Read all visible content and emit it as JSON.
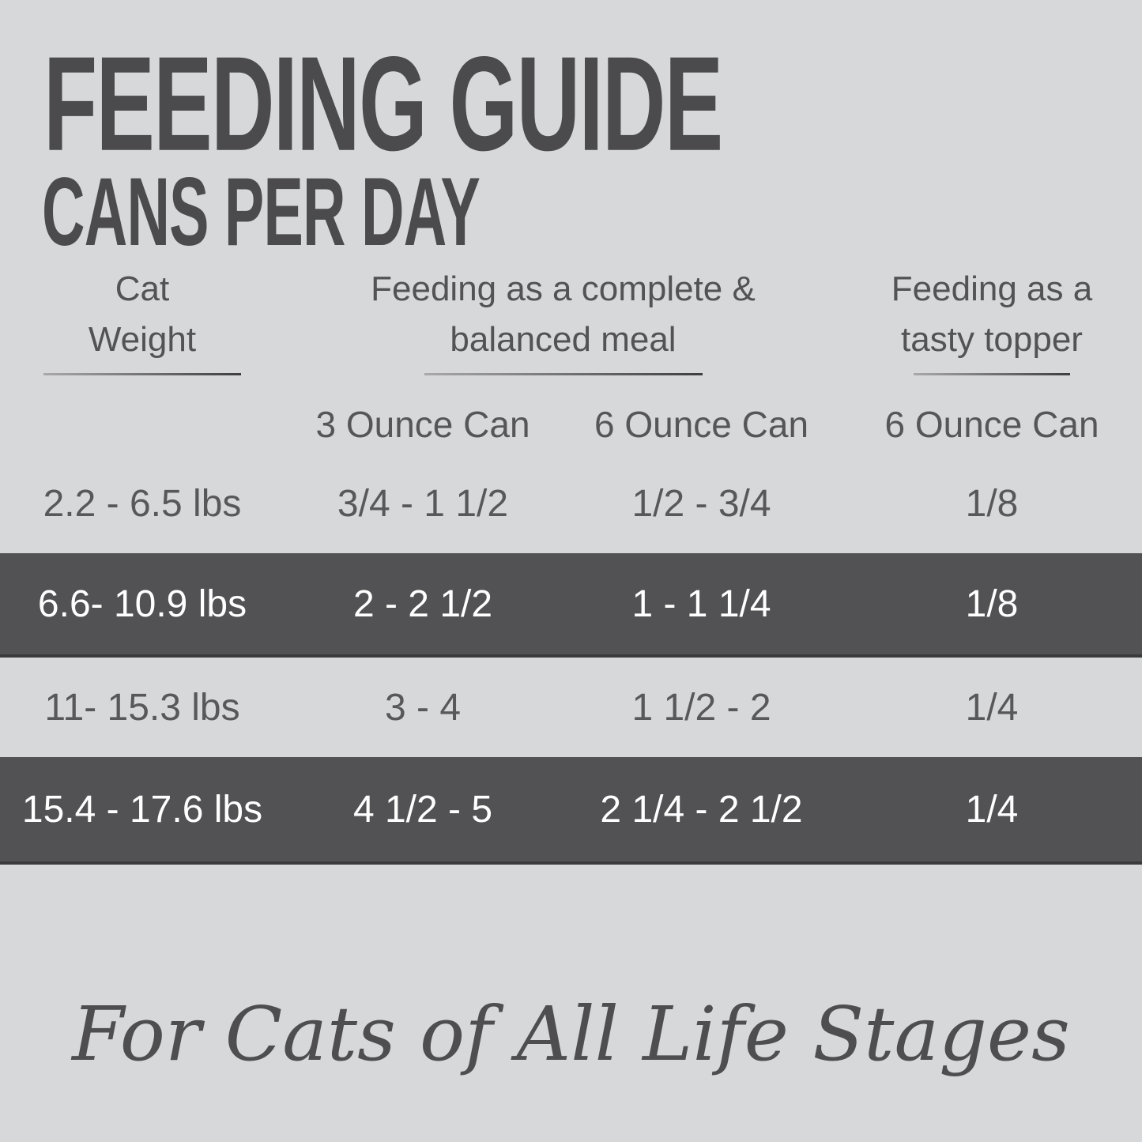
{
  "title": "FEEDING GUIDE",
  "subtitle": "CANS PER DAY",
  "table": {
    "column_headers": {
      "weight": {
        "line1": "Cat",
        "line2": "Weight"
      },
      "meal": {
        "line1": "Feeding as a complete &",
        "line2": "balanced meal"
      },
      "topper": {
        "line1": "Feeding as a",
        "line2": "tasty topper"
      }
    },
    "sub_headers": {
      "meal_small": "3 Ounce Can",
      "meal_large": "6 Ounce Can",
      "topper_large": "6 Ounce Can"
    },
    "rows": [
      {
        "weight": "2.2 - 6.5 lbs",
        "meal_3oz": "3/4 - 1 1/2",
        "meal_6oz": "1/2 - 3/4",
        "topper_6oz": "1/8",
        "highlighted": false
      },
      {
        "weight": "6.6- 10.9 lbs",
        "meal_3oz": "2 - 2 1/2",
        "meal_6oz": "1 - 1 1/4",
        "topper_6oz": "1/8",
        "highlighted": true
      },
      {
        "weight": "11- 15.3 lbs",
        "meal_3oz": "3 - 4",
        "meal_6oz": "1 1/2 - 2",
        "topper_6oz": "1/4",
        "highlighted": false
      },
      {
        "weight": "15.4 - 17.6 lbs",
        "meal_3oz": "4 1/2 - 5",
        "meal_6oz": "2 1/4 - 2 1/2",
        "topper_6oz": "1/4",
        "highlighted": true
      }
    ]
  },
  "footer": {
    "tagline": "For Cats of All Life Stages"
  },
  "colors": {
    "background": "#d7d8d9",
    "highlight_row": "#525254",
    "highlight_row_edge": "#3a3a3c",
    "text_dark": "#4b4b4d",
    "text_body": "#58585a",
    "text_on_dark": "#ffffff"
  }
}
